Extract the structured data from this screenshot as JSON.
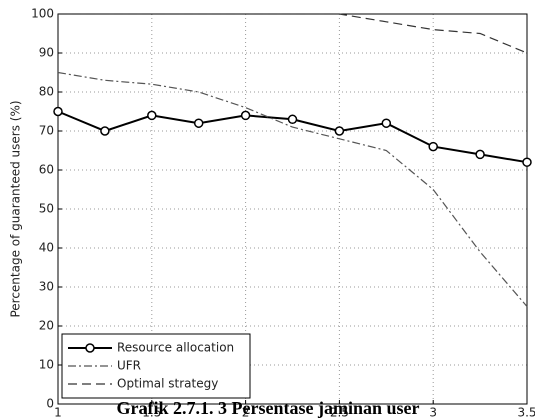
{
  "chart_data": {
    "type": "line",
    "caption": "Grafik 2.7.1. 3 Persentase jaminan user",
    "y_label": "Percentage of guaranteed users (%)",
    "x": [
      1,
      1.25,
      1.5,
      1.75,
      2,
      2.25,
      2.5,
      2.75,
      3,
      3.25,
      3.5
    ],
    "series": [
      {
        "name": "Resource allocation",
        "color": "#000000",
        "line_style": "solid",
        "marker": "o",
        "values": [
          75,
          70,
          74,
          72,
          74,
          73,
          70,
          72,
          66,
          64,
          62
        ]
      },
      {
        "name": "UFR",
        "color": "#555555",
        "line_style": "dashdot",
        "values": [
          85,
          83,
          82,
          80,
          76,
          71,
          68,
          65,
          55,
          39,
          25
        ]
      },
      {
        "name": "Optimal strategy",
        "color": "#333333",
        "line_style": "dashed",
        "values": [
          100,
          100,
          100,
          100,
          100,
          100,
          100,
          98,
          96,
          95,
          90
        ]
      }
    ],
    "xlim": [
      1,
      3.5
    ],
    "xticks": [
      1,
      1.5,
      2,
      2.5,
      3,
      3.5
    ],
    "ylim": [
      0,
      100
    ],
    "yticks": [
      0,
      10,
      20,
      30,
      40,
      50,
      60,
      70,
      80,
      90,
      100
    ],
    "grid": true,
    "legend": "lower left"
  }
}
